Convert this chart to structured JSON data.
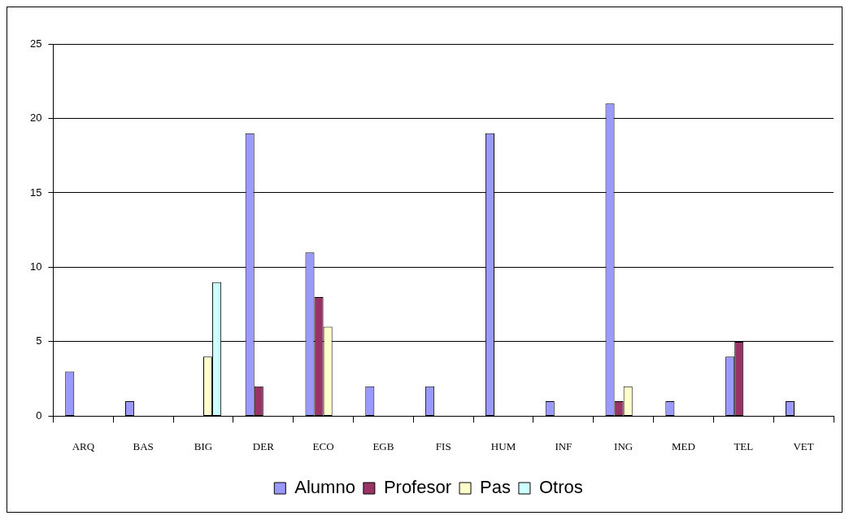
{
  "chart_data": {
    "type": "bar",
    "categories": [
      "ARQ",
      "BAS",
      "BIG",
      "DER",
      "ECO",
      "EGB",
      "FIS",
      "HUM",
      "INF",
      "ING",
      "MED",
      "TEL",
      "VET"
    ],
    "series": [
      {
        "name": "Alumno",
        "color": "#9999ff",
        "values": [
          3,
          1,
          0,
          19,
          11,
          2,
          2,
          19,
          1,
          21,
          1,
          4,
          1
        ]
      },
      {
        "name": "Profesor",
        "color": "#993366",
        "values": [
          0,
          0,
          0,
          2,
          8,
          0,
          0,
          0,
          0,
          1,
          0,
          5,
          0
        ]
      },
      {
        "name": "Pas",
        "color": "#ffffcc",
        "values": [
          0,
          0,
          4,
          0,
          6,
          0,
          0,
          0,
          0,
          2,
          0,
          0,
          0
        ]
      },
      {
        "name": "Otros",
        "color": "#ccffff",
        "values": [
          0,
          0,
          9,
          0,
          0,
          0,
          0,
          0,
          0,
          0,
          0,
          0,
          0
        ]
      }
    ],
    "ylim": [
      0,
      25
    ],
    "yticks": [
      0,
      5,
      10,
      15,
      20,
      25
    ],
    "grid": "y",
    "legend": "bottom"
  }
}
